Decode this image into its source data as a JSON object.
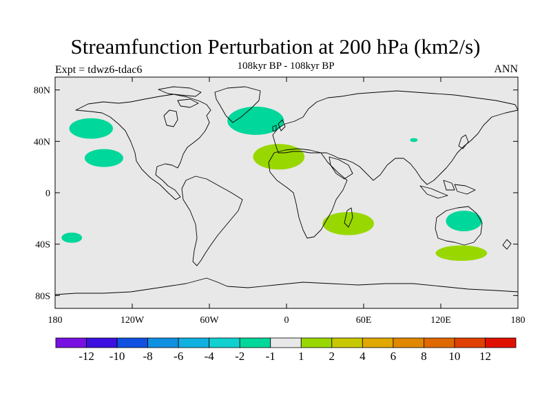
{
  "header": {
    "title": "Streamfunction Perturbation at 200 hPa (km2/s)",
    "subtitle": "108kyr BP - 108kyr BP",
    "left_label": "Expt = tdwz6-tdac6",
    "right_label": "ANN"
  },
  "map": {
    "projection": "cylindrical-equidistant",
    "lon_range": [
      -180,
      180
    ],
    "lat_range": [
      -90,
      90
    ],
    "background_color": "#e8e8e8",
    "lat_ticks": [
      {
        "value": 80,
        "label": "80N"
      },
      {
        "value": 40,
        "label": "40N"
      },
      {
        "value": 0,
        "label": "0"
      },
      {
        "value": -40,
        "label": "40S"
      },
      {
        "value": -80,
        "label": "80S"
      }
    ],
    "lon_ticks": [
      {
        "value": -180,
        "label": "180"
      },
      {
        "value": -120,
        "label": "120W"
      },
      {
        "value": -60,
        "label": "60W"
      },
      {
        "value": 0,
        "label": "0"
      },
      {
        "value": 60,
        "label": "60E"
      },
      {
        "value": 120,
        "label": "120E"
      },
      {
        "value": 180,
        "label": "180"
      }
    ],
    "anomaly_regions": [
      {
        "name": "north-pacific-west-negative",
        "class": "-2 to -1",
        "color": "#00d79b",
        "center_lon": -152,
        "center_lat": 50,
        "radius_lon": 17,
        "radius_lat": 8
      },
      {
        "name": "central-pacific-negative",
        "class": "-2 to -1",
        "color": "#00d79b",
        "center_lon": -142,
        "center_lat": 27,
        "radius_lon": 15,
        "radius_lat": 7
      },
      {
        "name": "south-pacific-negative",
        "class": "-2 to -1",
        "color": "#00d79b",
        "center_lon": -167,
        "center_lat": -35,
        "radius_lon": 8,
        "radius_lat": 4
      },
      {
        "name": "north-atlantic-negative",
        "class": "-2 to -1",
        "color": "#00d79b",
        "center_lon": -24,
        "center_lat": 56,
        "radius_lon": 22,
        "radius_lat": 11
      },
      {
        "name": "north-africa-positive",
        "class": "1 to 2",
        "color": "#99d700",
        "center_lon": -6,
        "center_lat": 28,
        "radius_lon": 20,
        "radius_lat": 10
      },
      {
        "name": "south-africa-positive",
        "class": "1 to 2",
        "color": "#99d700",
        "center_lon": 48,
        "center_lat": -24,
        "radius_lon": 20,
        "radius_lat": 9
      },
      {
        "name": "australia-negative",
        "class": "-2 to -1",
        "color": "#00d79b",
        "center_lon": 138,
        "center_lat": -22,
        "radius_lon": 14,
        "radius_lat": 8
      },
      {
        "name": "south-australia-positive",
        "class": "1 to 2",
        "color": "#99d700",
        "center_lon": 136,
        "center_lat": -47,
        "radius_lon": 20,
        "radius_lat": 6
      },
      {
        "name": "central-asia-negative",
        "class": "-2 to -1",
        "color": "#00d79b",
        "center_lon": 99,
        "center_lat": 41,
        "radius_lon": 3,
        "radius_lat": 1.5
      }
    ]
  },
  "colorbar": {
    "colors": [
      "#7710e0",
      "#3b10e0",
      "#1050e0",
      "#1090e0",
      "#10b0e0",
      "#10d0d0",
      "#00d79b",
      "#e8e8e8",
      "#99d700",
      "#c8c800",
      "#e0a800",
      "#e08800",
      "#e06800",
      "#e04000",
      "#e01000"
    ],
    "labels": [
      "-12",
      "-10",
      "-8",
      "-6",
      "-4",
      "-2",
      "-1",
      "1",
      "2",
      "4",
      "6",
      "8",
      "10",
      "12"
    ]
  }
}
